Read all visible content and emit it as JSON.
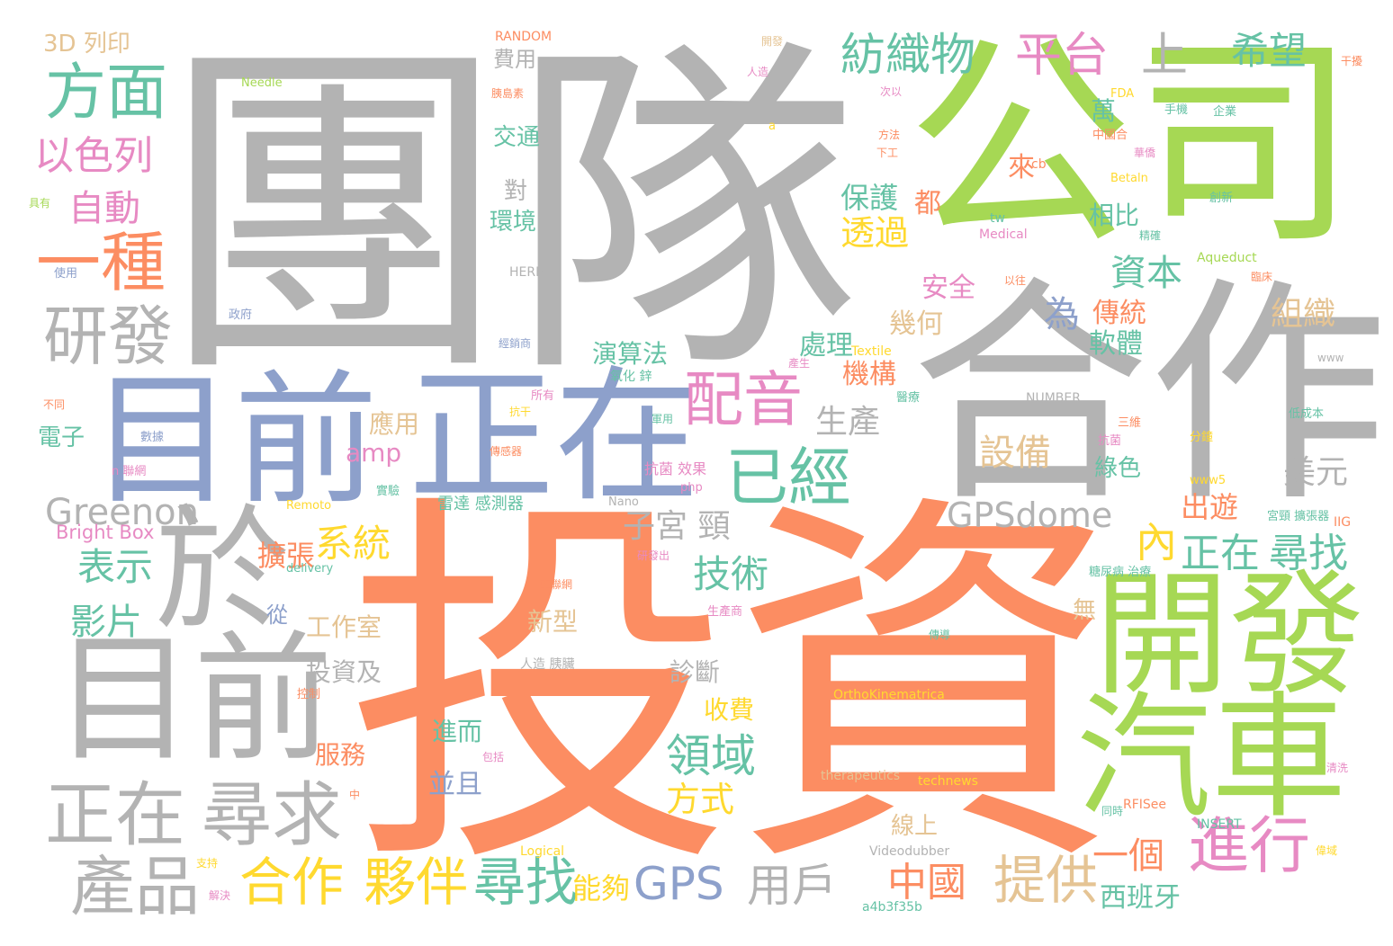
{
  "palette": {
    "gray": "#b3b3b3",
    "orange": "#fc8d62",
    "green": "#a6d854",
    "blue": "#8da0cb",
    "teal": "#66c2a5",
    "pink": "#e78ac3",
    "yellow": "#ffd92f",
    "tan": "#e5c494"
  },
  "words": [
    {
      "text": "團隊",
      "color": "gray"
    },
    {
      "text": "投資",
      "color": "orange"
    },
    {
      "text": "公司",
      "color": "green"
    },
    {
      "text": "合作",
      "color": "gray"
    },
    {
      "text": "目前",
      "color": "blue"
    },
    {
      "text": "正在",
      "color": "blue"
    },
    {
      "text": "於",
      "color": "gray"
    },
    {
      "text": "目前",
      "color": "gray"
    },
    {
      "text": "開發",
      "color": "green"
    },
    {
      "text": "汽車",
      "color": "green"
    },
    {
      "text": "正在",
      "color": "gray"
    },
    {
      "text": "尋求",
      "color": "gray"
    },
    {
      "text": "產品",
      "color": "gray"
    },
    {
      "text": "研發",
      "color": "gray"
    },
    {
      "text": "一種",
      "color": "orange"
    },
    {
      "text": "方面",
      "color": "teal"
    },
    {
      "text": "以色列",
      "color": "pink"
    },
    {
      "text": "自動",
      "color": "pink"
    },
    {
      "text": "紡織物",
      "color": "teal"
    },
    {
      "text": "平台",
      "color": "pink"
    },
    {
      "text": "上",
      "color": "gray"
    },
    {
      "text": "希望",
      "color": "teal"
    },
    {
      "text": "配音",
      "color": "pink"
    },
    {
      "text": "已經",
      "color": "teal"
    },
    {
      "text": "進行",
      "color": "pink"
    },
    {
      "text": "合作",
      "color": "yellow"
    },
    {
      "text": "夥伴",
      "color": "yellow"
    },
    {
      "text": "尋找",
      "color": "teal"
    },
    {
      "text": "GPS",
      "color": "blue"
    },
    {
      "text": "用戶",
      "color": "gray"
    },
    {
      "text": "中國",
      "color": "orange"
    },
    {
      "text": "提供",
      "color": "tan"
    },
    {
      "text": "一個",
      "color": "orange"
    },
    {
      "text": "西班牙",
      "color": "teal"
    },
    {
      "text": "能夠",
      "color": "yellow"
    },
    {
      "text": "GPSdome",
      "color": "gray"
    },
    {
      "text": "Greenon",
      "color": "gray"
    },
    {
      "text": "Bright Box",
      "color": "pink"
    },
    {
      "text": "正在",
      "color": "teal"
    },
    {
      "text": "尋找",
      "color": "teal"
    },
    {
      "text": "內",
      "color": "yellow"
    },
    {
      "text": "美元",
      "color": "gray"
    },
    {
      "text": "出遊",
      "color": "orange"
    },
    {
      "text": "技術",
      "color": "teal"
    },
    {
      "text": "領域",
      "color": "teal"
    },
    {
      "text": "方式",
      "color": "yellow"
    },
    {
      "text": "系統",
      "color": "yellow"
    },
    {
      "text": "表示",
      "color": "teal"
    },
    {
      "text": "影片",
      "color": "teal"
    },
    {
      "text": "擴張",
      "color": "orange"
    },
    {
      "text": "子宮 頸",
      "color": "gray"
    },
    {
      "text": "設備",
      "color": "tan"
    },
    {
      "text": "生產",
      "color": "gray"
    },
    {
      "text": "資本",
      "color": "teal"
    },
    {
      "text": "為",
      "color": "blue"
    },
    {
      "text": "透過",
      "color": "yellow"
    },
    {
      "text": "保護",
      "color": "teal"
    },
    {
      "text": "都",
      "color": "orange"
    },
    {
      "text": "安全",
      "color": "pink"
    },
    {
      "text": "幾何",
      "color": "tan"
    },
    {
      "text": "處理",
      "color": "teal"
    },
    {
      "text": "機構",
      "color": "orange"
    },
    {
      "text": "傳統",
      "color": "orange"
    },
    {
      "text": "軟體",
      "color": "teal"
    },
    {
      "text": "組織",
      "color": "tan"
    },
    {
      "text": "相比",
      "color": "teal"
    },
    {
      "text": "萬",
      "color": "teal"
    },
    {
      "text": "來",
      "color": "orange"
    },
    {
      "text": "環境",
      "color": "teal"
    },
    {
      "text": "對",
      "color": "gray"
    },
    {
      "text": "交通",
      "color": "teal"
    },
    {
      "text": "費用",
      "color": "gray"
    },
    {
      "text": "演算法",
      "color": "teal"
    },
    {
      "text": "應用",
      "color": "tan"
    },
    {
      "text": "amp",
      "color": "pink"
    },
    {
      "text": "新型",
      "color": "tan"
    },
    {
      "text": "工作室",
      "color": "tan"
    },
    {
      "text": "投資及",
      "color": "gray"
    },
    {
      "text": "診斷",
      "color": "gray"
    },
    {
      "text": "收費",
      "color": "yellow"
    },
    {
      "text": "進而",
      "color": "teal"
    },
    {
      "text": "服務",
      "color": "orange"
    },
    {
      "text": "並且",
      "color": "blue"
    },
    {
      "text": "從",
      "color": "blue"
    },
    {
      "text": "電子",
      "color": "teal"
    },
    {
      "text": "綠色",
      "color": "teal"
    },
    {
      "text": "線上",
      "color": "tan"
    },
    {
      "text": "無",
      "color": "tan"
    },
    {
      "text": "雷達 感測器",
      "color": "teal"
    },
    {
      "text": "抗菌 效果",
      "color": "pink"
    },
    {
      "text": "3D 列印",
      "color": "tan"
    },
    {
      "text": "RANDOM",
      "color": "orange"
    },
    {
      "text": "Needle",
      "color": "green"
    },
    {
      "text": "HERE",
      "color": "gray"
    },
    {
      "text": "NUMBER",
      "color": "gray"
    },
    {
      "text": "INSERT",
      "color": "teal"
    },
    {
      "text": "Aqueduct",
      "color": "green"
    },
    {
      "text": "Medical",
      "color": "pink"
    },
    {
      "text": "tw",
      "color": "teal"
    },
    {
      "text": "Textile",
      "color": "yellow"
    },
    {
      "text": "Betaln",
      "color": "yellow"
    },
    {
      "text": "FDA",
      "color": "yellow"
    },
    {
      "text": "www5",
      "color": "yellow"
    },
    {
      "text": "www",
      "color": "gray"
    },
    {
      "text": "Nano",
      "color": "gray"
    },
    {
      "text": "php",
      "color": "pink"
    },
    {
      "text": "Remoto",
      "color": "yellow"
    },
    {
      "text": "delivery",
      "color": "teal"
    },
    {
      "text": "OrthoKinematrica",
      "color": "yellow"
    },
    {
      "text": "therapeutics",
      "color": "tan"
    },
    {
      "text": "technews",
      "color": "yellow"
    },
    {
      "text": "RFISee",
      "color": "orange"
    },
    {
      "text": "Videodubber",
      "color": "gray"
    },
    {
      "text": "a4b3f35b",
      "color": "teal"
    },
    {
      "text": "Logical",
      "color": "yellow"
    },
    {
      "text": "cb",
      "color": "orange"
    },
    {
      "text": "a",
      "color": "yellow"
    },
    {
      "text": "IIG",
      "color": "orange"
    },
    {
      "text": "中國合",
      "color": "orange"
    },
    {
      "text": "手機",
      "color": "teal"
    },
    {
      "text": "企業",
      "color": "teal"
    },
    {
      "text": "創新",
      "color": "teal"
    },
    {
      "text": "糖尿病 治療",
      "color": "teal"
    },
    {
      "text": "宮頸 擴張器",
      "color": "teal"
    },
    {
      "text": "低成本",
      "color": "teal"
    },
    {
      "text": "分鐘",
      "color": "yellow"
    },
    {
      "text": "抗菌",
      "color": "pink"
    },
    {
      "text": "三維",
      "color": "orange"
    },
    {
      "text": "生產商",
      "color": "pink"
    },
    {
      "text": "人造 胰臟",
      "color": "gray"
    },
    {
      "text": "研發出",
      "color": "pink"
    },
    {
      "text": "車聯網",
      "color": "orange"
    },
    {
      "text": "傳感器",
      "color": "orange"
    },
    {
      "text": "氧化 鋅",
      "color": "teal"
    },
    {
      "text": "經銷商",
      "color": "blue"
    },
    {
      "text": "政府",
      "color": "blue"
    },
    {
      "text": "使用",
      "color": "blue"
    },
    {
      "text": "具有",
      "color": "green"
    },
    {
      "text": "不同",
      "color": "orange"
    },
    {
      "text": "數據",
      "color": "blue"
    },
    {
      "text": "n 聯網",
      "color": "pink"
    },
    {
      "text": "所有",
      "color": "pink"
    },
    {
      "text": "抗干",
      "color": "yellow"
    },
    {
      "text": "軍用",
      "color": "teal"
    },
    {
      "text": "實驗",
      "color": "teal"
    },
    {
      "text": "控制",
      "color": "orange"
    },
    {
      "text": "包括",
      "color": "pink"
    },
    {
      "text": "支持",
      "color": "yellow"
    },
    {
      "text": "解決",
      "color": "pink"
    },
    {
      "text": "中",
      "color": "orange"
    },
    {
      "text": "傳導",
      "color": "teal"
    },
    {
      "text": "精確",
      "color": "teal"
    },
    {
      "text": "醫療",
      "color": "teal"
    },
    {
      "text": "臨床",
      "color": "orange"
    },
    {
      "text": "產生",
      "color": "pink"
    },
    {
      "text": "以往",
      "color": "orange"
    },
    {
      "text": "胰島素",
      "color": "orange"
    },
    {
      "text": "人造",
      "color": "pink"
    },
    {
      "text": "開發",
      "color": "tan"
    },
    {
      "text": "干擾",
      "color": "orange"
    },
    {
      "text": "華僑",
      "color": "pink"
    },
    {
      "text": "方法",
      "color": "orange"
    },
    {
      "text": "次以",
      "color": "pink"
    },
    {
      "text": "下工",
      "color": "orange"
    },
    {
      "text": "同時",
      "color": "teal"
    },
    {
      "text": "清洗",
      "color": "pink"
    },
    {
      "text": "偉域",
      "color": "yellow"
    }
  ]
}
